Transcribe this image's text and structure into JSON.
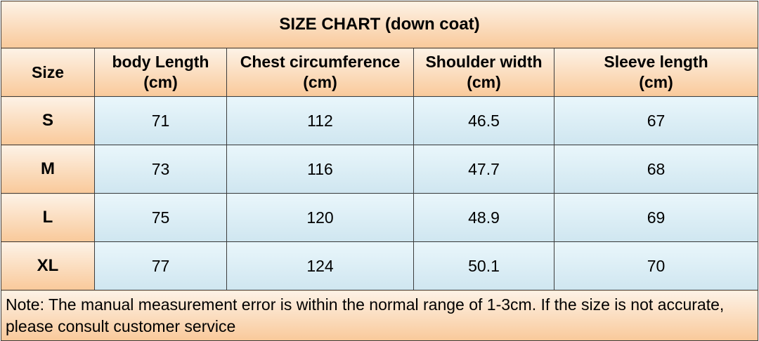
{
  "title": "SIZE CHART  (down coat)",
  "headers": {
    "size": "Size",
    "body_length": {
      "label": "body Length",
      "unit": "(cm)"
    },
    "chest": {
      "label": "Chest circumference",
      "unit": "(cm)"
    },
    "shoulder": {
      "label": "Shoulder width",
      "unit": "(cm)"
    },
    "sleeve": {
      "label": "Sleeve length",
      "unit": "(cm)"
    }
  },
  "rows": [
    {
      "size": "S",
      "body_length": "71",
      "chest": "112",
      "shoulder": "46.5",
      "sleeve": "67"
    },
    {
      "size": "M",
      "body_length": "73",
      "chest": "116",
      "shoulder": "47.7",
      "sleeve": "68"
    },
    {
      "size": "L",
      "body_length": "75",
      "chest": "120",
      "shoulder": "48.9",
      "sleeve": "69"
    },
    {
      "size": "XL",
      "body_length": "77",
      "chest": "124",
      "shoulder": "50.1",
      "sleeve": "70"
    }
  ],
  "note": "Note: The manual measurement error is within the normal range of 1-3cm. If the size is not accurate, please consult customer service",
  "colors": {
    "header_fill_top": "#fdf2e6",
    "header_fill_bottom": "#f9c99a",
    "value_fill_top": "#e9f6fb",
    "value_fill_bottom": "#cfe6f0",
    "border": "#3c3c3c"
  }
}
